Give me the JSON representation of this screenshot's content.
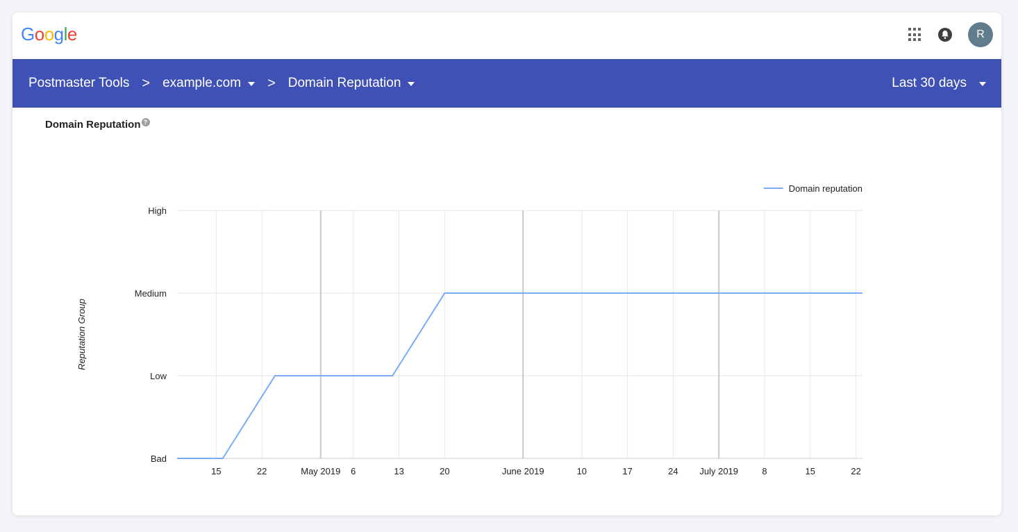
{
  "brand": {
    "logo_letters": [
      {
        "ch": "G",
        "color": "#4285F4"
      },
      {
        "ch": "o",
        "color": "#EA4335"
      },
      {
        "ch": "o",
        "color": "#FBBC05"
      },
      {
        "ch": "g",
        "color": "#4285F4"
      },
      {
        "ch": "l",
        "color": "#34A853"
      },
      {
        "ch": "e",
        "color": "#EA4335"
      }
    ]
  },
  "top_icons": {
    "apps": "apps-grid-icon",
    "notifications": "bell-icon",
    "avatar_letter": "R"
  },
  "nav": {
    "crumb_1": "Postmaster Tools",
    "separator": ">",
    "crumb_2": "example.com",
    "crumb_3": "Domain Reputation",
    "range": "Last 30 days",
    "background": "#3f51b5"
  },
  "section": {
    "title": "Domain Reputation",
    "help_symbol": "?"
  },
  "chart_data": {
    "type": "line",
    "title": "",
    "ylabel": "Reputation Group",
    "xlabel": "",
    "y_categories": [
      "Bad",
      "Low",
      "Medium",
      "High"
    ],
    "x_ticks": [
      {
        "date": "2019-04-15",
        "label": "15"
      },
      {
        "date": "2019-04-22",
        "label": "22"
      },
      {
        "date": "2019-05-01",
        "label": "May 2019",
        "major": true
      },
      {
        "date": "2019-05-06",
        "label": "6"
      },
      {
        "date": "2019-05-13",
        "label": "13"
      },
      {
        "date": "2019-05-20",
        "label": "20"
      },
      {
        "date": "2019-06-01",
        "label": "June 2019",
        "major": true
      },
      {
        "date": "2019-06-10",
        "label": "10"
      },
      {
        "date": "2019-06-17",
        "label": "17"
      },
      {
        "date": "2019-06-24",
        "label": "24"
      },
      {
        "date": "2019-07-01",
        "label": "July 2019",
        "major": true
      },
      {
        "date": "2019-07-08",
        "label": "8"
      },
      {
        "date": "2019-07-15",
        "label": "15"
      },
      {
        "date": "2019-07-22",
        "label": "22"
      }
    ],
    "x_range": [
      "2019-04-09",
      "2019-07-23"
    ],
    "series": [
      {
        "name": "Domain reputation",
        "color": "#7baaf7",
        "points": [
          {
            "x": "2019-04-09",
            "y": "Bad"
          },
          {
            "x": "2019-04-16",
            "y": "Bad"
          },
          {
            "x": "2019-04-24",
            "y": "Low"
          },
          {
            "x": "2019-05-12",
            "y": "Low"
          },
          {
            "x": "2019-05-20",
            "y": "Medium"
          },
          {
            "x": "2019-07-23",
            "y": "Medium"
          }
        ]
      }
    ],
    "legend_position": "top-right",
    "grid": true
  }
}
